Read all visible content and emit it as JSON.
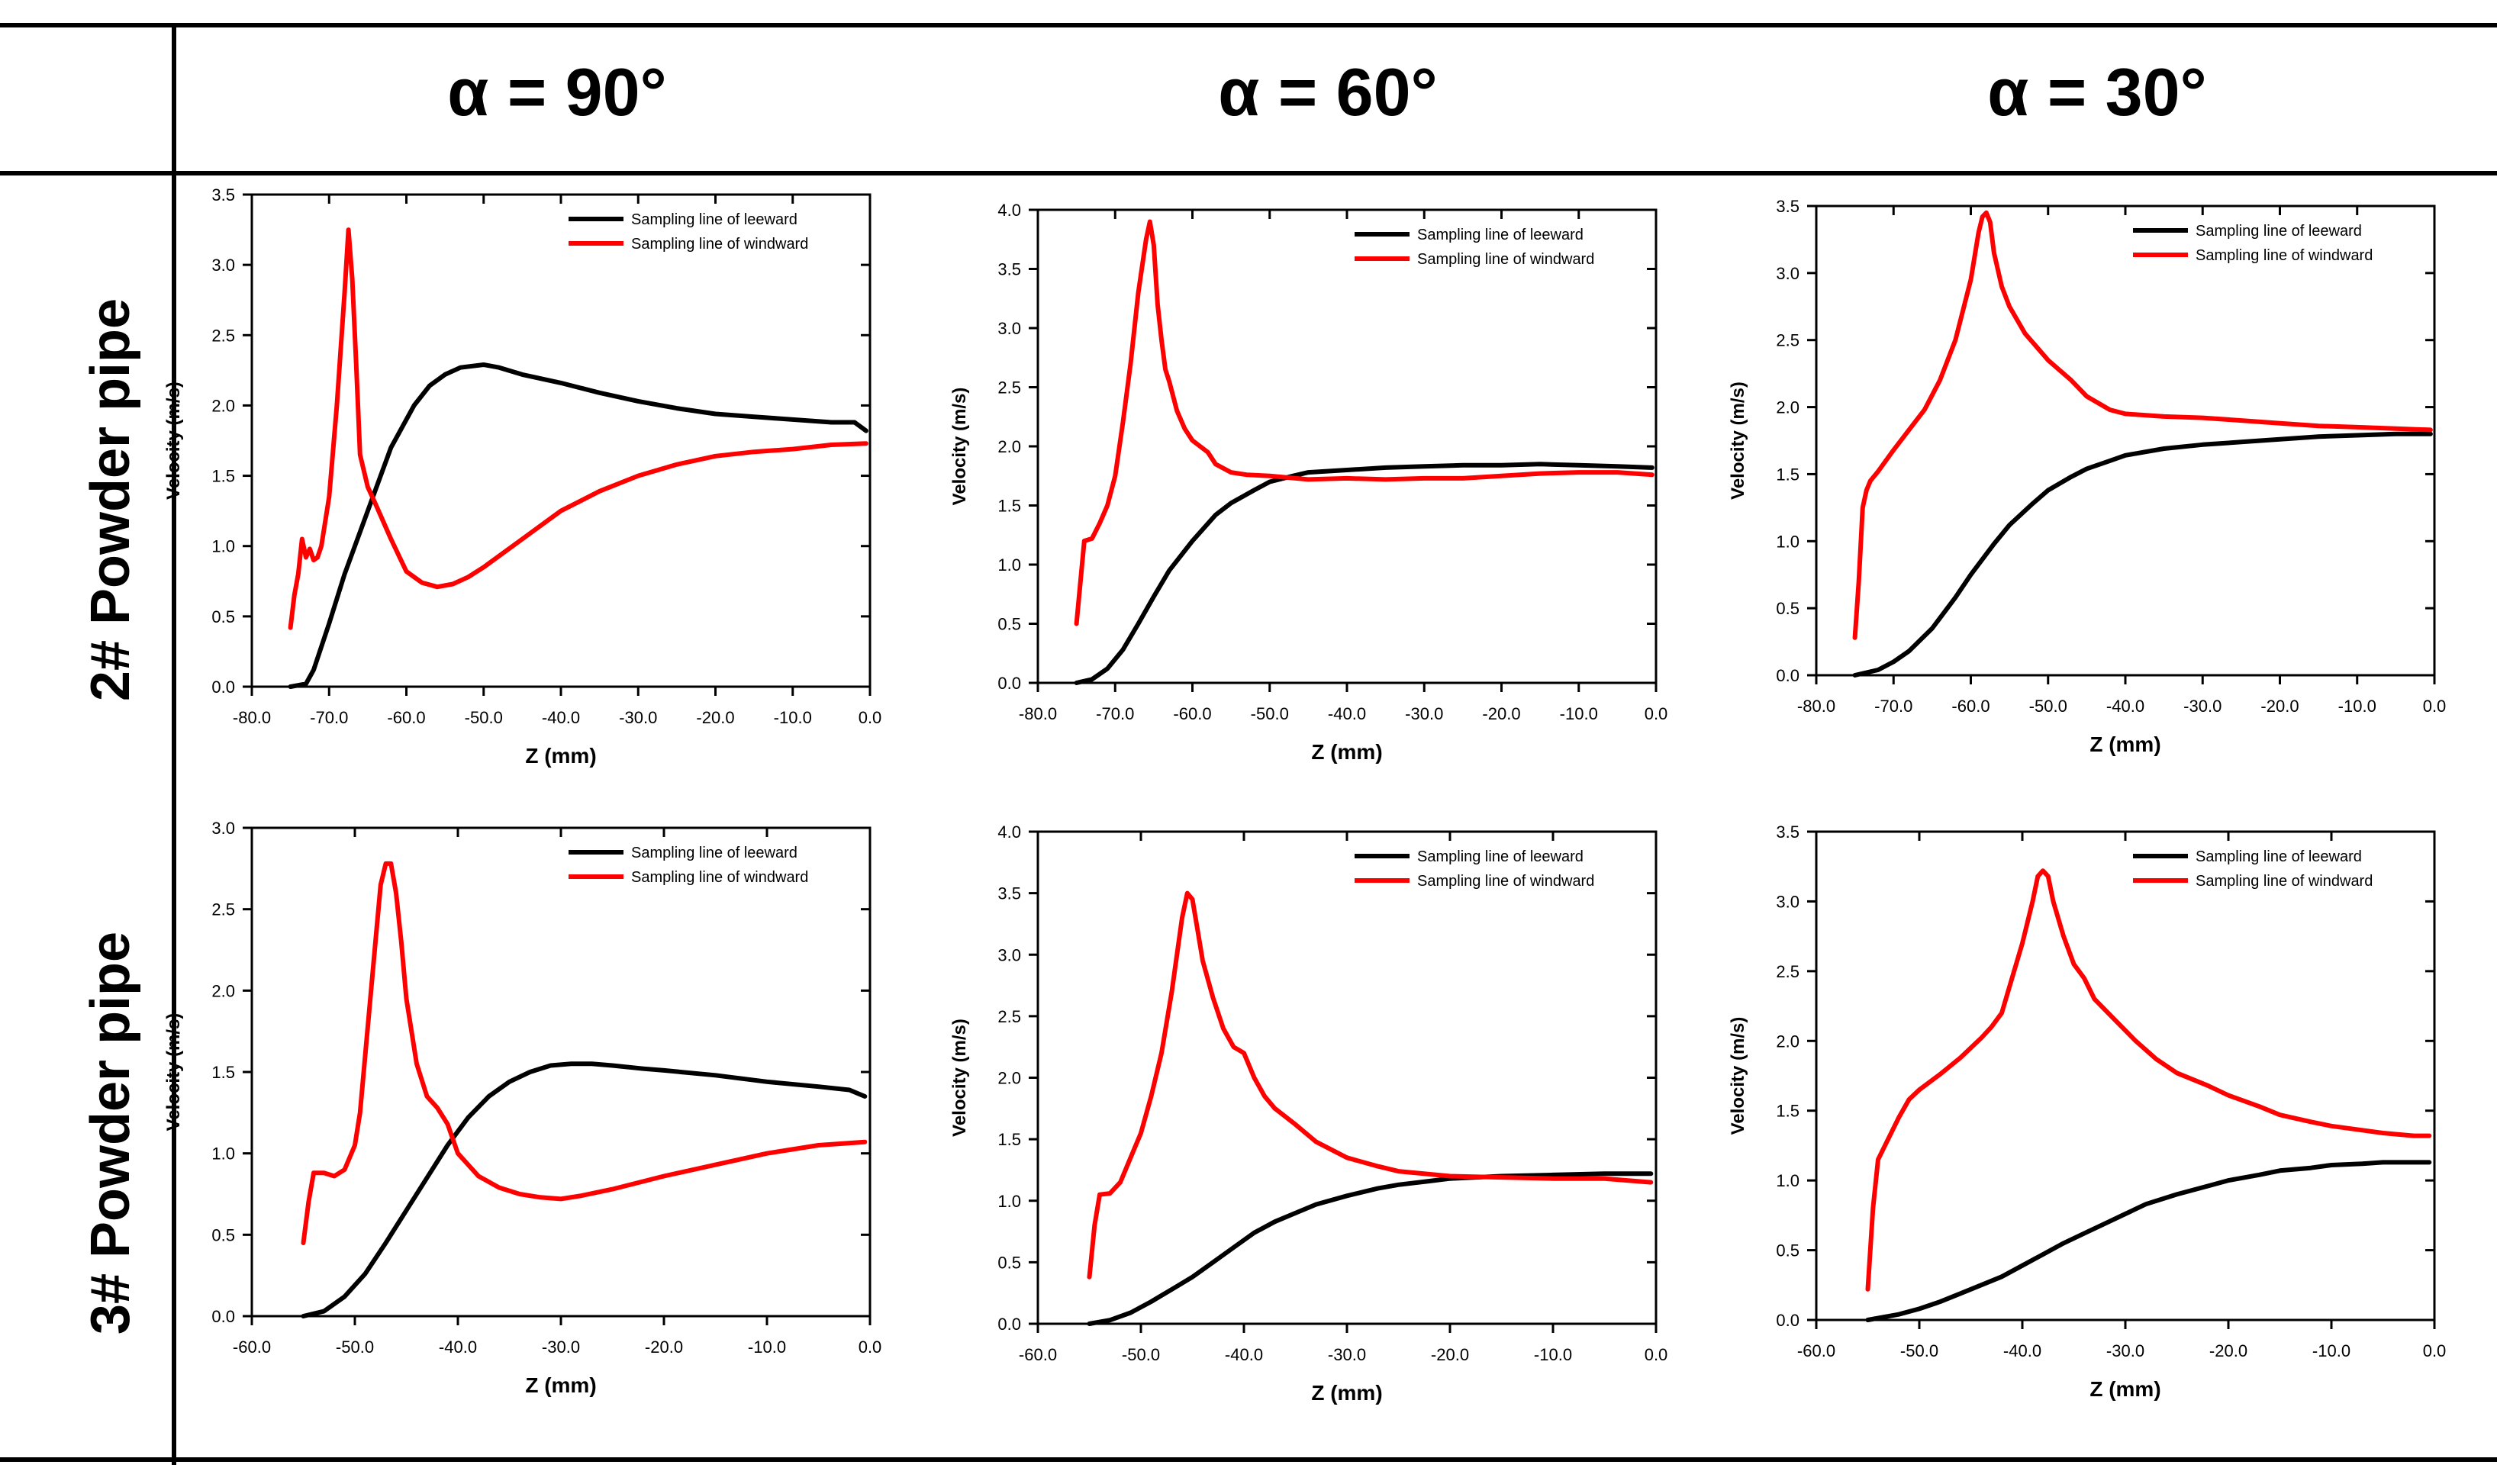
{
  "figure": {
    "column_headers": [
      "α = 90°",
      "α = 60°",
      "α = 30°"
    ],
    "row_headers": [
      "2# Powder pipe",
      "3# Powder pipe"
    ],
    "colors": {
      "leeward": "#000000",
      "windward": "#ff0000"
    }
  },
  "chart_data": [
    {
      "type": "line",
      "row": "2# Powder pipe",
      "column": "α = 90°",
      "xlabel": "Z (mm)",
      "ylabel": "Velocity (m/s)",
      "xlim": [
        -80,
        0
      ],
      "ylim": [
        0,
        3.5
      ],
      "xticks": [
        -80,
        -70,
        -60,
        -50,
        -40,
        -30,
        -20,
        -10,
        0
      ],
      "yticks": [
        0,
        0.5,
        1.0,
        1.5,
        2.0,
        2.5,
        3.0,
        3.5
      ],
      "xtick_labels": [
        "-80.0",
        "-70.0",
        "-60.0",
        "-50.0",
        "-40.0",
        "-30.0",
        "-20.0",
        "-10.0",
        "0.0"
      ],
      "ytick_labels": [
        "0.0",
        "0.5",
        "1.0",
        "1.5",
        "2.0",
        "2.5",
        "3.0",
        "3.5"
      ],
      "legend_position": "top-right",
      "series": [
        {
          "name": "Sampling line of leeward",
          "color": "#000000",
          "x": [
            -75,
            -73,
            -72,
            -70,
            -68,
            -65,
            -62,
            -59,
            -57,
            -55,
            -53,
            -50,
            -48,
            -45,
            -40,
            -35,
            -30,
            -25,
            -20,
            -15,
            -10,
            -5,
            -2,
            -0.5
          ],
          "y": [
            0.0,
            0.02,
            0.12,
            0.45,
            0.8,
            1.25,
            1.7,
            2.0,
            2.14,
            2.22,
            2.27,
            2.29,
            2.27,
            2.22,
            2.16,
            2.09,
            2.03,
            1.98,
            1.94,
            1.92,
            1.9,
            1.88,
            1.88,
            1.82
          ]
        },
        {
          "name": "Sampling line of windward",
          "color": "#ff0000",
          "x": [
            -75,
            -74.5,
            -74,
            -73.5,
            -73,
            -72.5,
            -72,
            -71.5,
            -71,
            -70,
            -69,
            -68,
            -67.5,
            -67,
            -66.5,
            -66,
            -65,
            -64,
            -62,
            -60,
            -58,
            -56,
            -54,
            -52,
            -50,
            -45,
            -40,
            -35,
            -30,
            -25,
            -20,
            -15,
            -10,
            -5,
            -0.5
          ],
          "y": [
            0.42,
            0.65,
            0.8,
            1.05,
            0.92,
            0.98,
            0.9,
            0.92,
            1.0,
            1.35,
            2.0,
            2.8,
            3.25,
            2.9,
            2.3,
            1.65,
            1.42,
            1.3,
            1.05,
            0.82,
            0.74,
            0.71,
            0.73,
            0.78,
            0.85,
            1.05,
            1.25,
            1.39,
            1.5,
            1.58,
            1.64,
            1.67,
            1.69,
            1.72,
            1.73
          ]
        }
      ]
    },
    {
      "type": "line",
      "row": "2# Powder pipe",
      "column": "α = 60°",
      "xlabel": "Z (mm)",
      "ylabel": "Velocity (m/s)",
      "xlim": [
        -80,
        0
      ],
      "ylim": [
        0,
        4.0
      ],
      "xticks": [
        -80,
        -70,
        -60,
        -50,
        -40,
        -30,
        -20,
        -10,
        0
      ],
      "yticks": [
        0,
        0.5,
        1.0,
        1.5,
        2.0,
        2.5,
        3.0,
        3.5,
        4.0
      ],
      "xtick_labels": [
        "-80.0",
        "-70.0",
        "-60.0",
        "-50.0",
        "-40.0",
        "-30.0",
        "-20.0",
        "-10.0",
        "0.0"
      ],
      "ytick_labels": [
        "0.0",
        "0.5",
        "1.0",
        "1.5",
        "2.0",
        "2.5",
        "3.0",
        "3.5",
        "4.0"
      ],
      "legend_position": "top-right",
      "series": [
        {
          "name": "Sampling line of leeward",
          "color": "#000000",
          "x": [
            -75,
            -73,
            -71,
            -69,
            -67,
            -65,
            -63,
            -60,
            -57,
            -55,
            -52,
            -50,
            -47,
            -45,
            -40,
            -35,
            -30,
            -25,
            -20,
            -15,
            -10,
            -5,
            -0.5
          ],
          "y": [
            0.0,
            0.03,
            0.12,
            0.28,
            0.5,
            0.73,
            0.95,
            1.2,
            1.42,
            1.52,
            1.63,
            1.7,
            1.75,
            1.78,
            1.8,
            1.82,
            1.83,
            1.84,
            1.84,
            1.85,
            1.84,
            1.83,
            1.82
          ]
        },
        {
          "name": "Sampling line of windward",
          "color": "#ff0000",
          "x": [
            -75,
            -74.5,
            -74,
            -73,
            -72,
            -71,
            -70,
            -69,
            -68,
            -67,
            -66,
            -65.5,
            -65,
            -64.5,
            -64,
            -63.5,
            -63,
            -62,
            -61,
            -60,
            -59,
            -58,
            -57,
            -55,
            -53,
            -50,
            -45,
            -40,
            -35,
            -30,
            -25,
            -20,
            -15,
            -10,
            -5,
            -0.5
          ],
          "y": [
            0.5,
            0.85,
            1.2,
            1.22,
            1.35,
            1.5,
            1.75,
            2.2,
            2.7,
            3.3,
            3.75,
            3.9,
            3.7,
            3.2,
            2.9,
            2.65,
            2.55,
            2.3,
            2.15,
            2.05,
            2.0,
            1.95,
            1.85,
            1.78,
            1.76,
            1.75,
            1.72,
            1.73,
            1.72,
            1.73,
            1.73,
            1.75,
            1.77,
            1.78,
            1.78,
            1.76
          ]
        }
      ]
    },
    {
      "type": "line",
      "row": "2# Powder pipe",
      "column": "α = 30°",
      "xlabel": "Z (mm)",
      "ylabel": "Velocity (m/s)",
      "xlim": [
        -80,
        0
      ],
      "ylim": [
        0,
        3.5
      ],
      "xticks": [
        -80,
        -70,
        -60,
        -50,
        -40,
        -30,
        -20,
        -10,
        0
      ],
      "yticks": [
        0,
        0.5,
        1.0,
        1.5,
        2.0,
        2.5,
        3.0,
        3.5
      ],
      "xtick_labels": [
        "-80.0",
        "-70.0",
        "-60.0",
        "-50.0",
        "-40.0",
        "-30.0",
        "-20.0",
        "-10.0",
        "0.0"
      ],
      "ytick_labels": [
        "0.0",
        "0.5",
        "1.0",
        "1.5",
        "2.0",
        "2.5",
        "3.0",
        "3.5"
      ],
      "legend_position": "top-right",
      "series": [
        {
          "name": "Sampling line of leeward",
          "color": "#000000",
          "x": [
            -75,
            -72,
            -70,
            -68,
            -65,
            -62,
            -60,
            -57,
            -55,
            -52,
            -50,
            -47,
            -45,
            -42,
            -40,
            -35,
            -30,
            -25,
            -20,
            -15,
            -10,
            -5,
            -0.5
          ],
          "y": [
            0.0,
            0.04,
            0.1,
            0.18,
            0.35,
            0.58,
            0.75,
            0.98,
            1.12,
            1.28,
            1.38,
            1.48,
            1.54,
            1.6,
            1.64,
            1.69,
            1.72,
            1.74,
            1.76,
            1.78,
            1.79,
            1.8,
            1.8
          ]
        },
        {
          "name": "Sampling line of windward",
          "color": "#ff0000",
          "x": [
            -75,
            -74.5,
            -74,
            -73.5,
            -73,
            -72,
            -70,
            -68,
            -66,
            -64,
            -62,
            -60,
            -59,
            -58.5,
            -58,
            -57.5,
            -57,
            -56,
            -55,
            -53,
            -50,
            -47,
            -45,
            -42,
            -40,
            -35,
            -30,
            -25,
            -20,
            -15,
            -10,
            -5,
            -0.5
          ],
          "y": [
            0.28,
            0.7,
            1.25,
            1.38,
            1.45,
            1.52,
            1.68,
            1.83,
            1.98,
            2.2,
            2.5,
            2.95,
            3.3,
            3.42,
            3.45,
            3.38,
            3.15,
            2.9,
            2.75,
            2.55,
            2.35,
            2.2,
            2.08,
            1.98,
            1.95,
            1.93,
            1.92,
            1.9,
            1.88,
            1.86,
            1.85,
            1.84,
            1.83
          ]
        }
      ]
    },
    {
      "type": "line",
      "row": "3# Powder pipe",
      "column": "α = 90°",
      "xlabel": "Z (mm)",
      "ylabel": "Velocity (m/s)",
      "xlim": [
        -60,
        0
      ],
      "ylim": [
        0,
        3.0
      ],
      "xticks": [
        -60,
        -50,
        -40,
        -30,
        -20,
        -10,
        0
      ],
      "yticks": [
        0,
        0.5,
        1.0,
        1.5,
        2.0,
        2.5,
        3.0
      ],
      "xtick_labels": [
        "-60.0",
        "-50.0",
        "-40.0",
        "-30.0",
        "-20.0",
        "-10.0",
        "0.0"
      ],
      "ytick_labels": [
        "0.0",
        "0.5",
        "1.0",
        "1.5",
        "2.0",
        "2.5",
        "3.0"
      ],
      "legend_position": "top-right",
      "series": [
        {
          "name": "Sampling line of leeward",
          "color": "#000000",
          "x": [
            -55,
            -53,
            -51,
            -49,
            -47,
            -45,
            -43,
            -41,
            -39,
            -37,
            -35,
            -33,
            -31,
            -29,
            -27,
            -25,
            -22,
            -20,
            -15,
            -10,
            -5,
            -2,
            -0.5
          ],
          "y": [
            0.0,
            0.03,
            0.12,
            0.26,
            0.45,
            0.65,
            0.85,
            1.05,
            1.22,
            1.35,
            1.44,
            1.5,
            1.54,
            1.55,
            1.55,
            1.54,
            1.52,
            1.51,
            1.48,
            1.44,
            1.41,
            1.39,
            1.35
          ]
        },
        {
          "name": "Sampling line of windward",
          "color": "#ff0000",
          "x": [
            -55,
            -54.5,
            -54,
            -53,
            -52,
            -51,
            -50,
            -49.5,
            -49,
            -48,
            -47.5,
            -47,
            -46.5,
            -46,
            -45.5,
            -45,
            -44,
            -43,
            -42,
            -41,
            -40,
            -38,
            -36,
            -34,
            -32,
            -30,
            -28,
            -25,
            -20,
            -15,
            -10,
            -5,
            -0.5
          ],
          "y": [
            0.45,
            0.7,
            0.88,
            0.88,
            0.86,
            0.9,
            1.05,
            1.25,
            1.6,
            2.3,
            2.65,
            2.78,
            2.78,
            2.6,
            2.3,
            1.95,
            1.55,
            1.35,
            1.28,
            1.18,
            1.0,
            0.86,
            0.79,
            0.75,
            0.73,
            0.72,
            0.74,
            0.78,
            0.86,
            0.93,
            1.0,
            1.05,
            1.07
          ]
        }
      ]
    },
    {
      "type": "line",
      "row": "3# Powder pipe",
      "column": "α = 60°",
      "xlabel": "Z (mm)",
      "ylabel": "Velocity (m/s)",
      "xlim": [
        -60,
        0
      ],
      "ylim": [
        0,
        4.0
      ],
      "xticks": [
        -60,
        -50,
        -40,
        -30,
        -20,
        -10,
        0
      ],
      "yticks": [
        0,
        0.5,
        1.0,
        1.5,
        2.0,
        2.5,
        3.0,
        3.5,
        4.0
      ],
      "xtick_labels": [
        "-60.0",
        "-50.0",
        "-40.0",
        "-30.0",
        "-20.0",
        "-10.0",
        "0.0"
      ],
      "ytick_labels": [
        "0.0",
        "0.5",
        "1.0",
        "1.5",
        "2.0",
        "2.5",
        "3.0",
        "3.5",
        "4.0"
      ],
      "legend_position": "top-right",
      "series": [
        {
          "name": "Sampling line of leeward",
          "color": "#000000",
          "x": [
            -55,
            -53,
            -51,
            -49,
            -47,
            -45,
            -43,
            -41,
            -39,
            -37,
            -35,
            -33,
            -30,
            -27,
            -25,
            -22,
            -20,
            -15,
            -10,
            -5,
            -0.5
          ],
          "y": [
            0.0,
            0.03,
            0.09,
            0.18,
            0.28,
            0.38,
            0.5,
            0.62,
            0.74,
            0.83,
            0.9,
            0.97,
            1.04,
            1.1,
            1.13,
            1.16,
            1.18,
            1.2,
            1.21,
            1.22,
            1.22
          ]
        },
        {
          "name": "Sampling line of windward",
          "color": "#ff0000",
          "x": [
            -55,
            -54.5,
            -54,
            -53,
            -52,
            -51,
            -50,
            -49,
            -48,
            -47,
            -46,
            -45.5,
            -45,
            -44.5,
            -44,
            -43,
            -42,
            -41,
            -40,
            -39,
            -38,
            -37,
            -35,
            -33,
            -30,
            -27,
            -25,
            -20,
            -15,
            -10,
            -5,
            -0.5
          ],
          "y": [
            0.38,
            0.8,
            1.05,
            1.06,
            1.15,
            1.35,
            1.55,
            1.85,
            2.2,
            2.7,
            3.3,
            3.5,
            3.45,
            3.2,
            2.95,
            2.65,
            2.4,
            2.25,
            2.2,
            2.0,
            1.85,
            1.75,
            1.62,
            1.48,
            1.35,
            1.28,
            1.24,
            1.2,
            1.19,
            1.18,
            1.18,
            1.15
          ]
        }
      ]
    },
    {
      "type": "line",
      "row": "3# Powder pipe",
      "column": "α = 30°",
      "xlabel": "Z (mm)",
      "ylabel": "Velocity (m/s)",
      "xlim": [
        -60,
        0
      ],
      "ylim": [
        0,
        3.5
      ],
      "xticks": [
        -60,
        -50,
        -40,
        -30,
        -20,
        -10,
        0
      ],
      "yticks": [
        0,
        0.5,
        1.0,
        1.5,
        2.0,
        2.5,
        3.0,
        3.5
      ],
      "xtick_labels": [
        "-60.0",
        "-50.0",
        "-40.0",
        "-30.0",
        "-20.0",
        "-10.0",
        "0.0"
      ],
      "ytick_labels": [
        "0.0",
        "0.5",
        "1.0",
        "1.5",
        "2.0",
        "2.5",
        "3.0",
        "3.5"
      ],
      "legend_position": "top-right",
      "series": [
        {
          "name": "Sampling line of leeward",
          "color": "#000000",
          "x": [
            -55,
            -52,
            -50,
            -48,
            -46,
            -44,
            -42,
            -40,
            -38,
            -36,
            -34,
            -32,
            -30,
            -28,
            -25,
            -22,
            -20,
            -17,
            -15,
            -12,
            -10,
            -7,
            -5,
            -0.5
          ],
          "y": [
            0.0,
            0.04,
            0.08,
            0.13,
            0.19,
            0.25,
            0.31,
            0.39,
            0.47,
            0.55,
            0.62,
            0.69,
            0.76,
            0.83,
            0.9,
            0.96,
            1.0,
            1.04,
            1.07,
            1.09,
            1.11,
            1.12,
            1.13,
            1.13
          ]
        },
        {
          "name": "Sampling line of windward",
          "color": "#ff0000",
          "x": [
            -55,
            -54.5,
            -54,
            -53,
            -52,
            -51,
            -50,
            -48,
            -46,
            -44,
            -43,
            -42,
            -41,
            -40,
            -39,
            -38.5,
            -38,
            -37.5,
            -37,
            -36,
            -35,
            -34,
            -33,
            -31,
            -29,
            -27,
            -25,
            -22,
            -20,
            -17,
            -15,
            -12,
            -10,
            -7,
            -5,
            -2,
            -0.5
          ],
          "y": [
            0.22,
            0.8,
            1.15,
            1.3,
            1.45,
            1.58,
            1.65,
            1.76,
            1.88,
            2.02,
            2.1,
            2.2,
            2.45,
            2.7,
            3.0,
            3.18,
            3.22,
            3.18,
            3.0,
            2.75,
            2.55,
            2.45,
            2.3,
            2.15,
            2.0,
            1.87,
            1.77,
            1.68,
            1.61,
            1.53,
            1.47,
            1.42,
            1.39,
            1.36,
            1.34,
            1.32,
            1.32
          ]
        }
      ]
    }
  ]
}
